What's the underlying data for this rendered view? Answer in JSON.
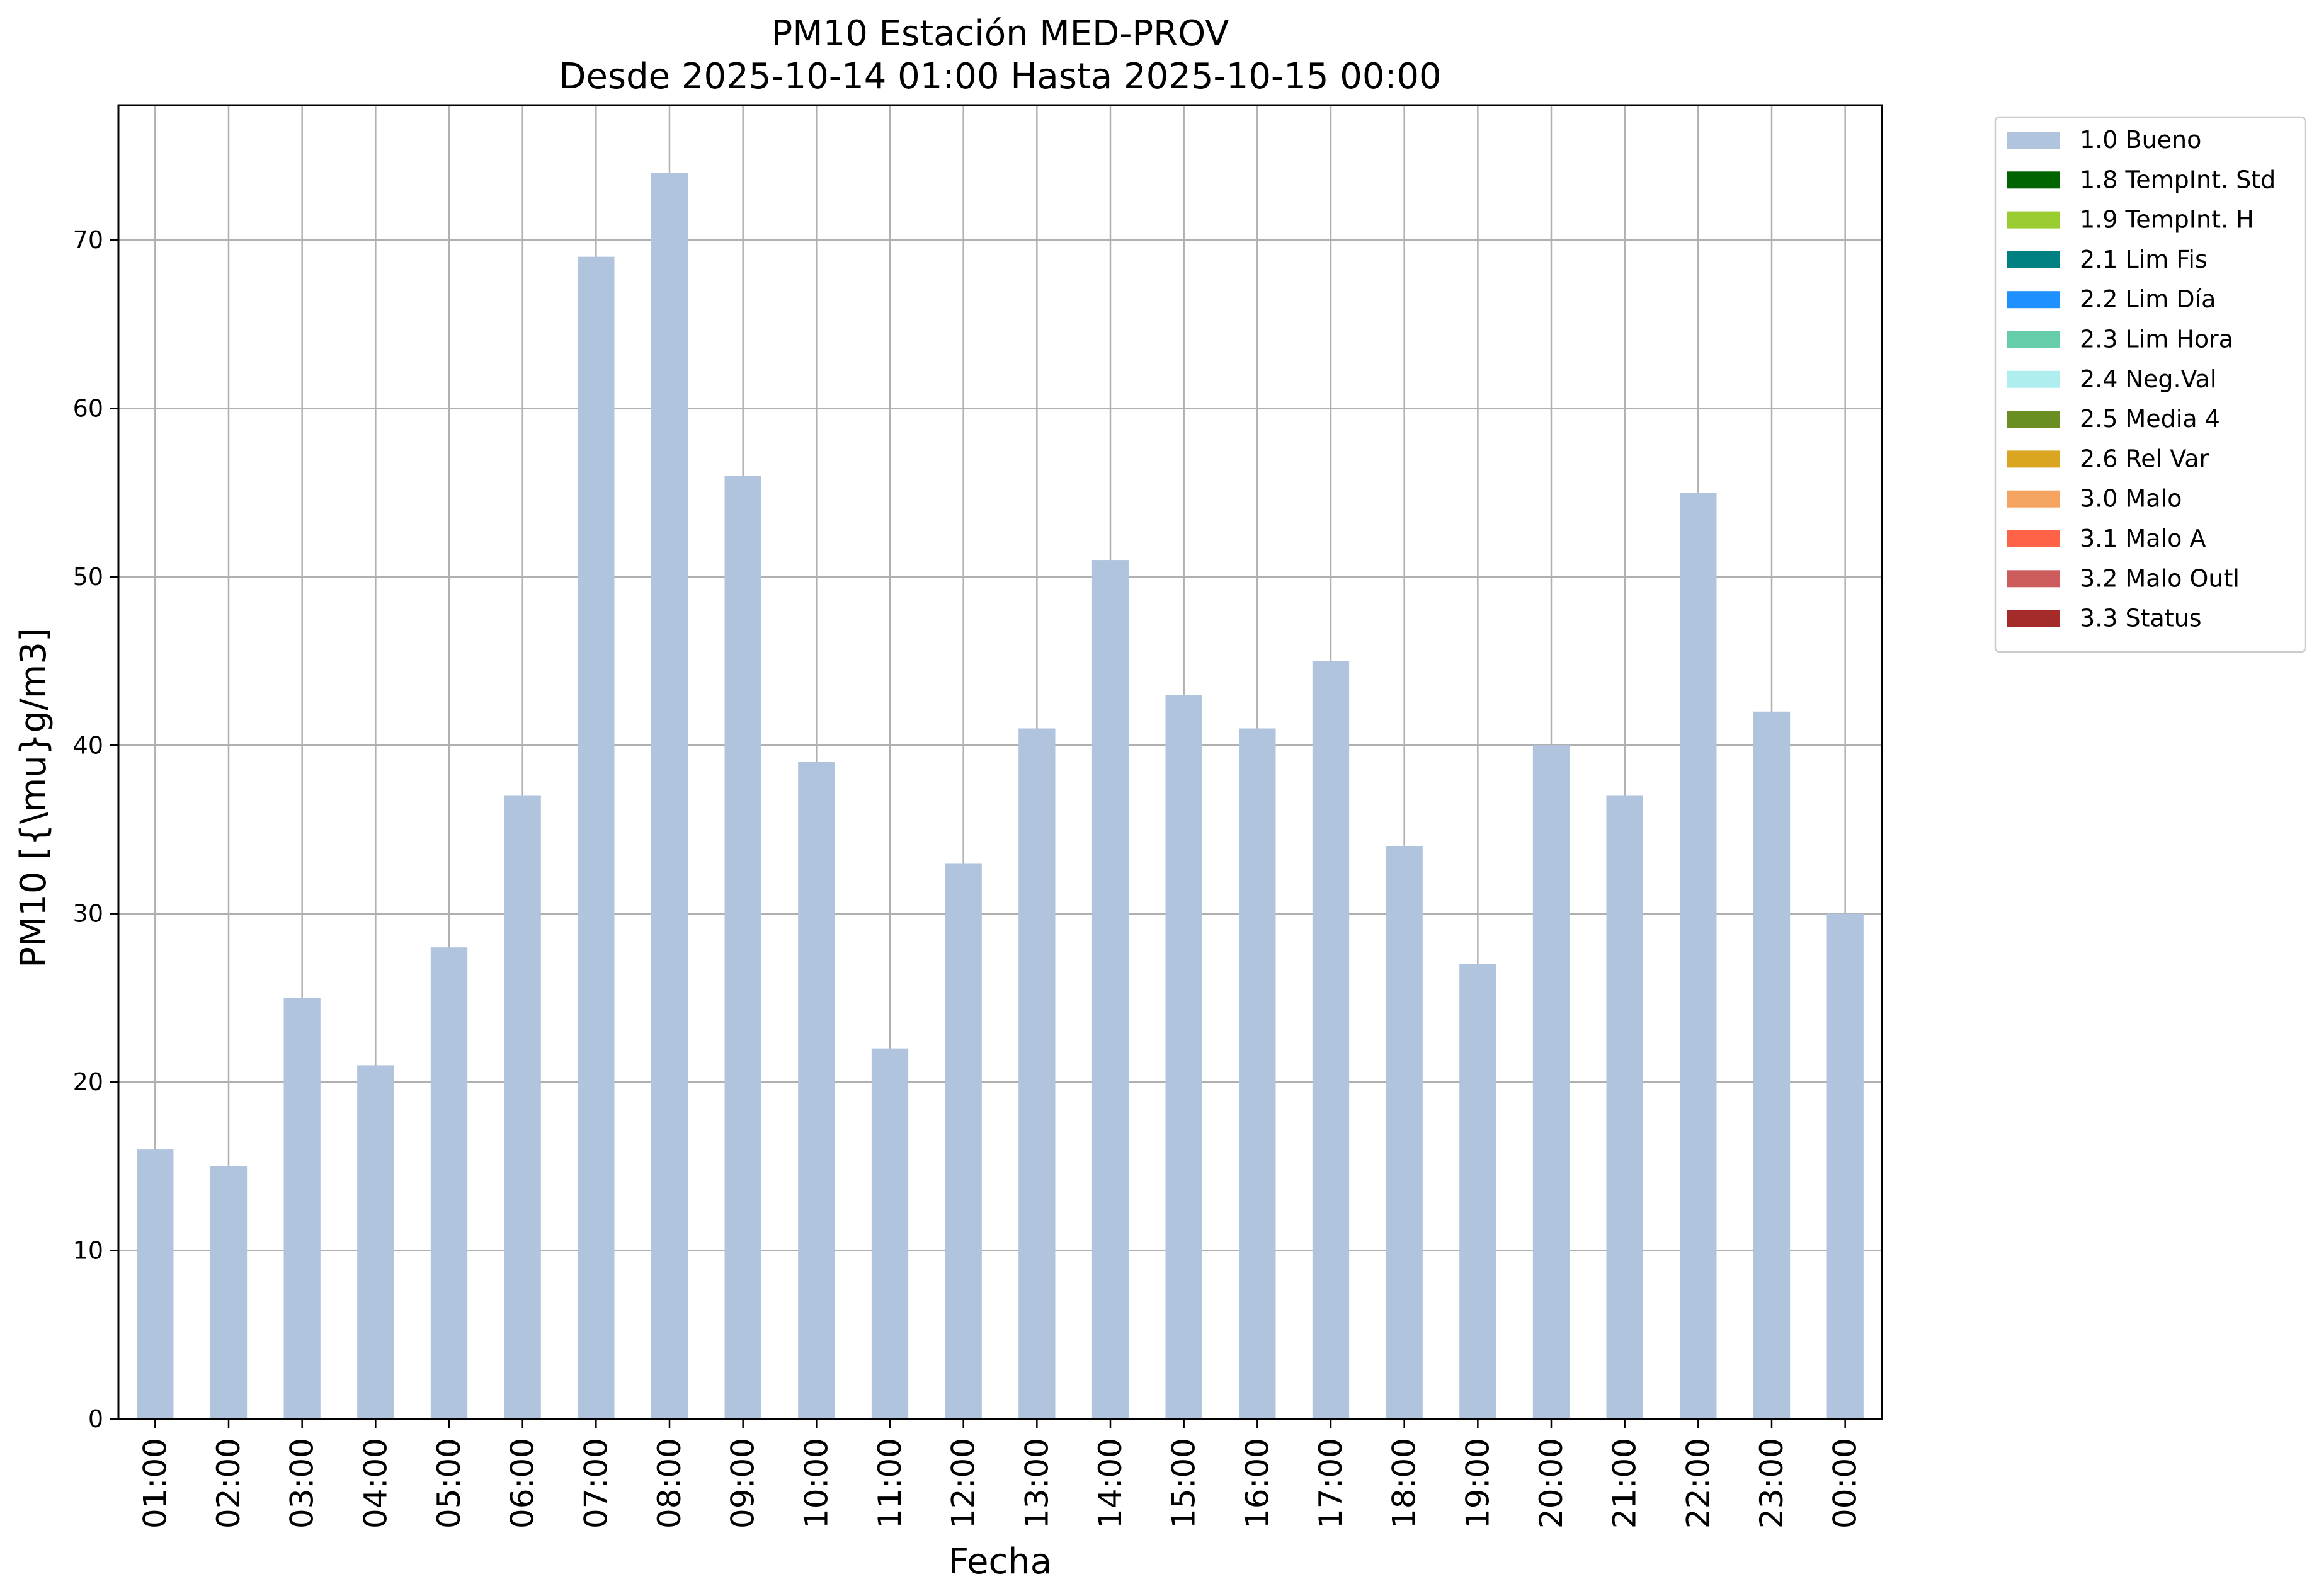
{
  "chart_data": {
    "type": "bar",
    "title": "PM10 Estación MED-PROV",
    "subtitle": "Desde 2025-10-14 01:00 Hasta 2025-10-15 00:00",
    "xlabel": "Fecha",
    "ylabel": "PM10 [{\\mu}g/m3]",
    "categories": [
      "01:00",
      "02:00",
      "03:00",
      "04:00",
      "05:00",
      "06:00",
      "07:00",
      "08:00",
      "09:00",
      "10:00",
      "11:00",
      "12:00",
      "13:00",
      "14:00",
      "15:00",
      "16:00",
      "17:00",
      "18:00",
      "19:00",
      "20:00",
      "21:00",
      "22:00",
      "23:00",
      "00:00"
    ],
    "series": [
      {
        "name": "1.0 Bueno",
        "color": "#b0c4de",
        "values": [
          16,
          15,
          25,
          21,
          28,
          37,
          69,
          74,
          56,
          39,
          22,
          33,
          41,
          51,
          43,
          41,
          45,
          34,
          27,
          40,
          37,
          55,
          42,
          30
        ]
      }
    ],
    "ylim": [
      0,
      78
    ],
    "yticks": [
      0,
      10,
      20,
      30,
      40,
      50,
      60,
      70
    ],
    "grid": true,
    "legend_position": "outside-top-right",
    "legend": [
      {
        "label": "1.0 Bueno",
        "color": "#b0c4de"
      },
      {
        "label": "1.8 TempInt. Std",
        "color": "#006400"
      },
      {
        "label": "1.9 TempInt. H",
        "color": "#9acd32"
      },
      {
        "label": "2.1 Lim Fis",
        "color": "#008080"
      },
      {
        "label": "2.2 Lim Día",
        "color": "#1e90ff"
      },
      {
        "label": "2.3 Lim Hora",
        "color": "#66cdaa"
      },
      {
        "label": "2.4 Neg.Val",
        "color": "#afeeee"
      },
      {
        "label": "2.5 Media 4",
        "color": "#6b8e23"
      },
      {
        "label": "2.6 Rel Var",
        "color": "#daa520"
      },
      {
        "label": "3.0 Malo",
        "color": "#f4a460"
      },
      {
        "label": "3.1 Malo A",
        "color": "#ff6347"
      },
      {
        "label": "3.2 Malo Outl",
        "color": "#cd5c5c"
      },
      {
        "label": "3.3 Status",
        "color": "#a52a2a"
      }
    ]
  }
}
